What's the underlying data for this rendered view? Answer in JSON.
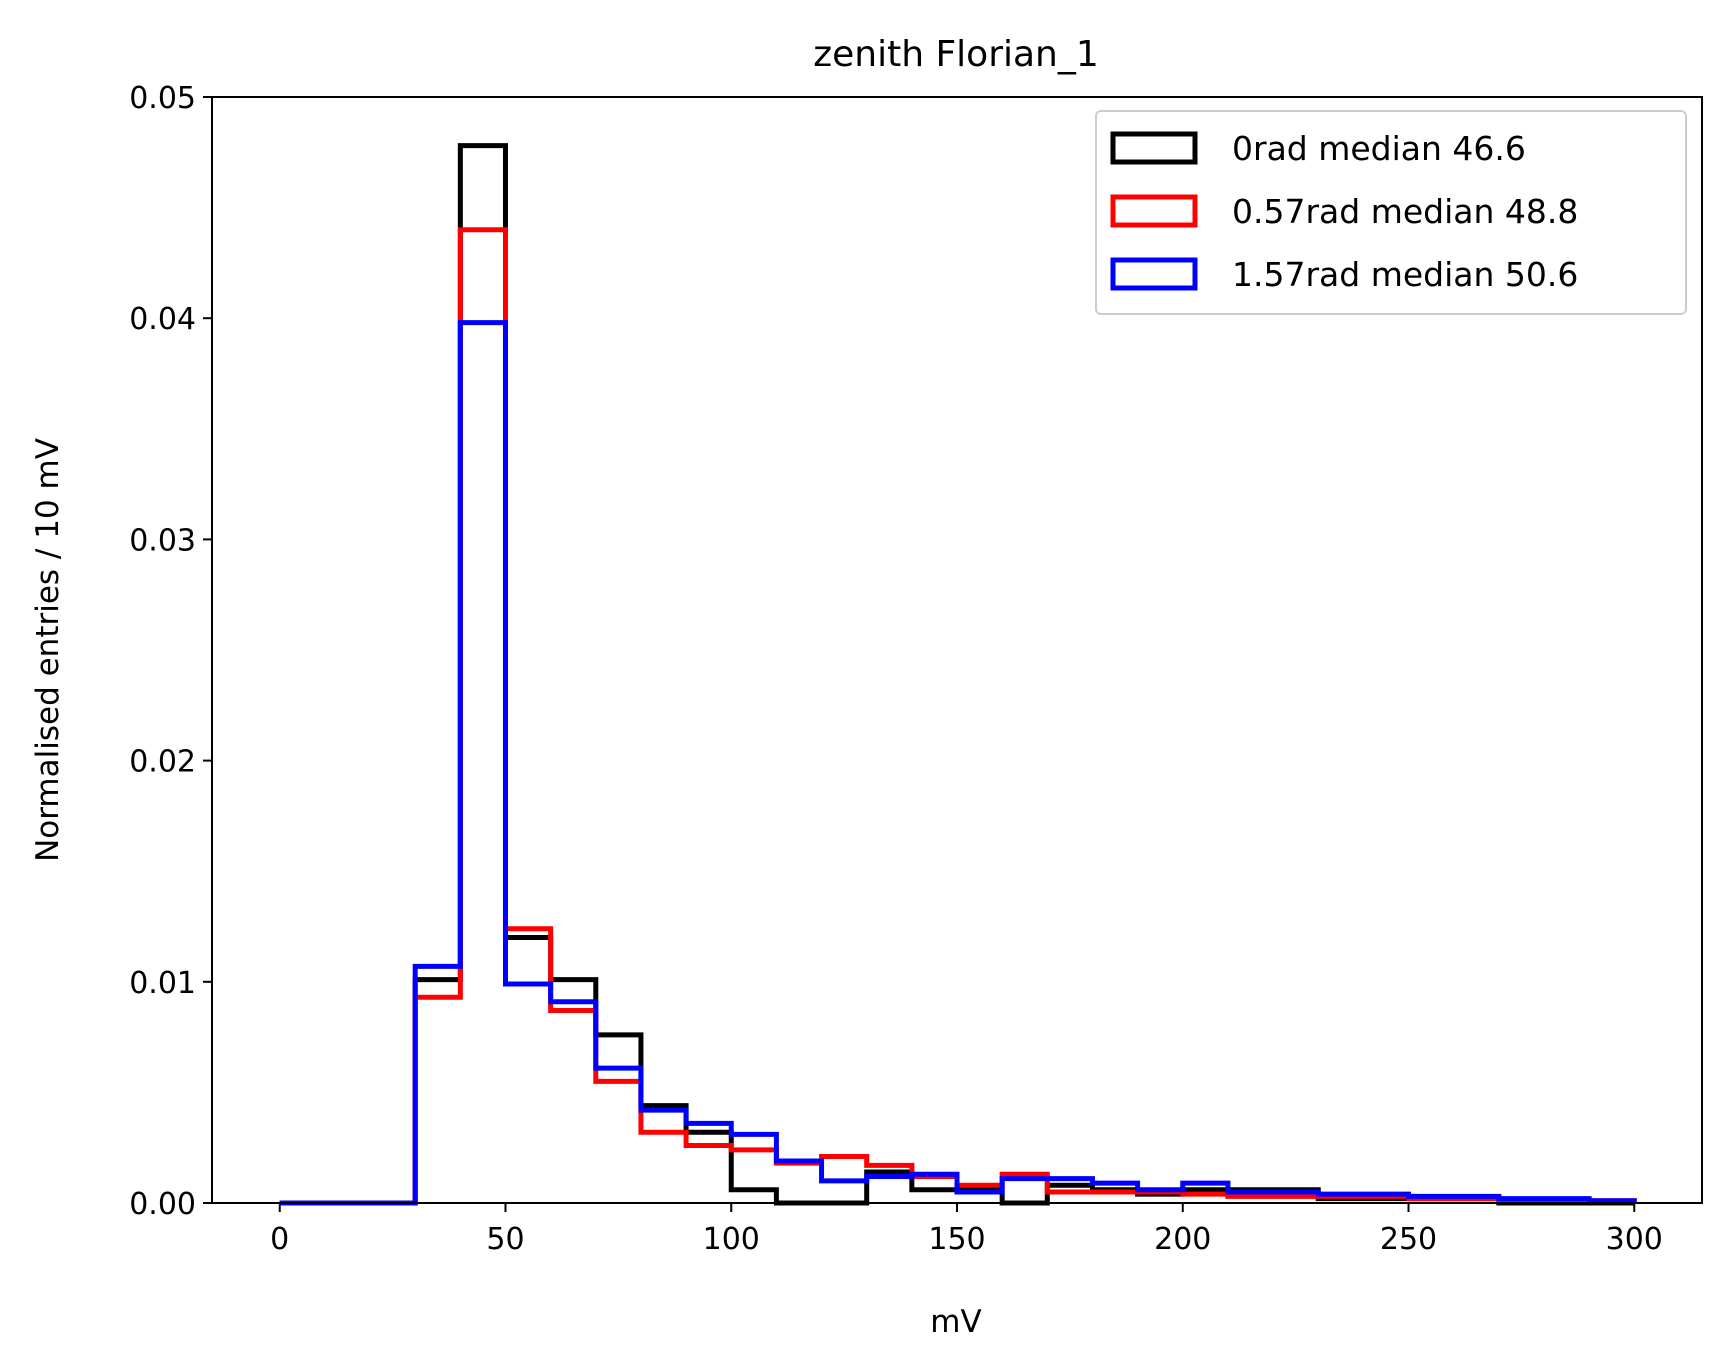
{
  "chart_data": {
    "type": "histogram",
    "title": "zenith Florian_1",
    "xlabel": "mV",
    "ylabel": "Normalised entries / 10 mV",
    "xlim": [
      -15,
      315
    ],
    "ylim": [
      0,
      0.05
    ],
    "xticks": [
      0,
      50,
      100,
      150,
      200,
      250,
      300
    ],
    "xtick_labels": [
      "0",
      "50",
      "100",
      "150",
      "200",
      "250",
      "300"
    ],
    "yticks": [
      0,
      0.01,
      0.02,
      0.03,
      0.04,
      0.05
    ],
    "ytick_labels": [
      "0.00",
      "0.01",
      "0.02",
      "0.03",
      "0.04",
      "0.05"
    ],
    "bin_edges": [
      0,
      10,
      20,
      30,
      40,
      50,
      60,
      70,
      80,
      90,
      100,
      110,
      120,
      130,
      140,
      150,
      160,
      170,
      180,
      190,
      200,
      210,
      220,
      230,
      240,
      250,
      260,
      270,
      280,
      290,
      300
    ],
    "grid": false,
    "legend_position": "top-right",
    "series": [
      {
        "name": "0rad median 46.6",
        "color": "#000000",
        "values": [
          0,
          0,
          0,
          0.0101,
          0.0478,
          0.012,
          0.0101,
          0.0076,
          0.0044,
          0.0032,
          0.0006,
          0,
          0,
          0.0014,
          0.0006,
          0.0006,
          0,
          0.0008,
          0.0006,
          0.0004,
          0.0006,
          0.0006,
          0.0006,
          0.0002,
          0.0002,
          0.0002,
          0.0002,
          0,
          0,
          0
        ]
      },
      {
        "name": "0.57rad median 48.8",
        "color": "#ff0000",
        "values": [
          0,
          0,
          0,
          0.0093,
          0.044,
          0.0124,
          0.0087,
          0.0055,
          0.0032,
          0.0026,
          0.0024,
          0.0018,
          0.0021,
          0.0017,
          0.0012,
          0.0008,
          0.0013,
          0.0005,
          0.0005,
          0.0005,
          0.0004,
          0.0003,
          0.0003,
          0.0003,
          0.0003,
          0.0002,
          0.0002,
          0.0001,
          0.0001,
          0.0001
        ]
      },
      {
        "name": "1.57rad median 50.6",
        "color": "#0000ff",
        "values": [
          0,
          0,
          0,
          0.0107,
          0.0398,
          0.0099,
          0.0091,
          0.0061,
          0.0042,
          0.0036,
          0.0031,
          0.0019,
          0.001,
          0.0012,
          0.0013,
          0.0005,
          0.0011,
          0.0011,
          0.0009,
          0.0006,
          0.0009,
          0.0005,
          0.0005,
          0.0004,
          0.0004,
          0.0003,
          0.0003,
          0.0002,
          0.0002,
          0.0001
        ]
      }
    ]
  }
}
